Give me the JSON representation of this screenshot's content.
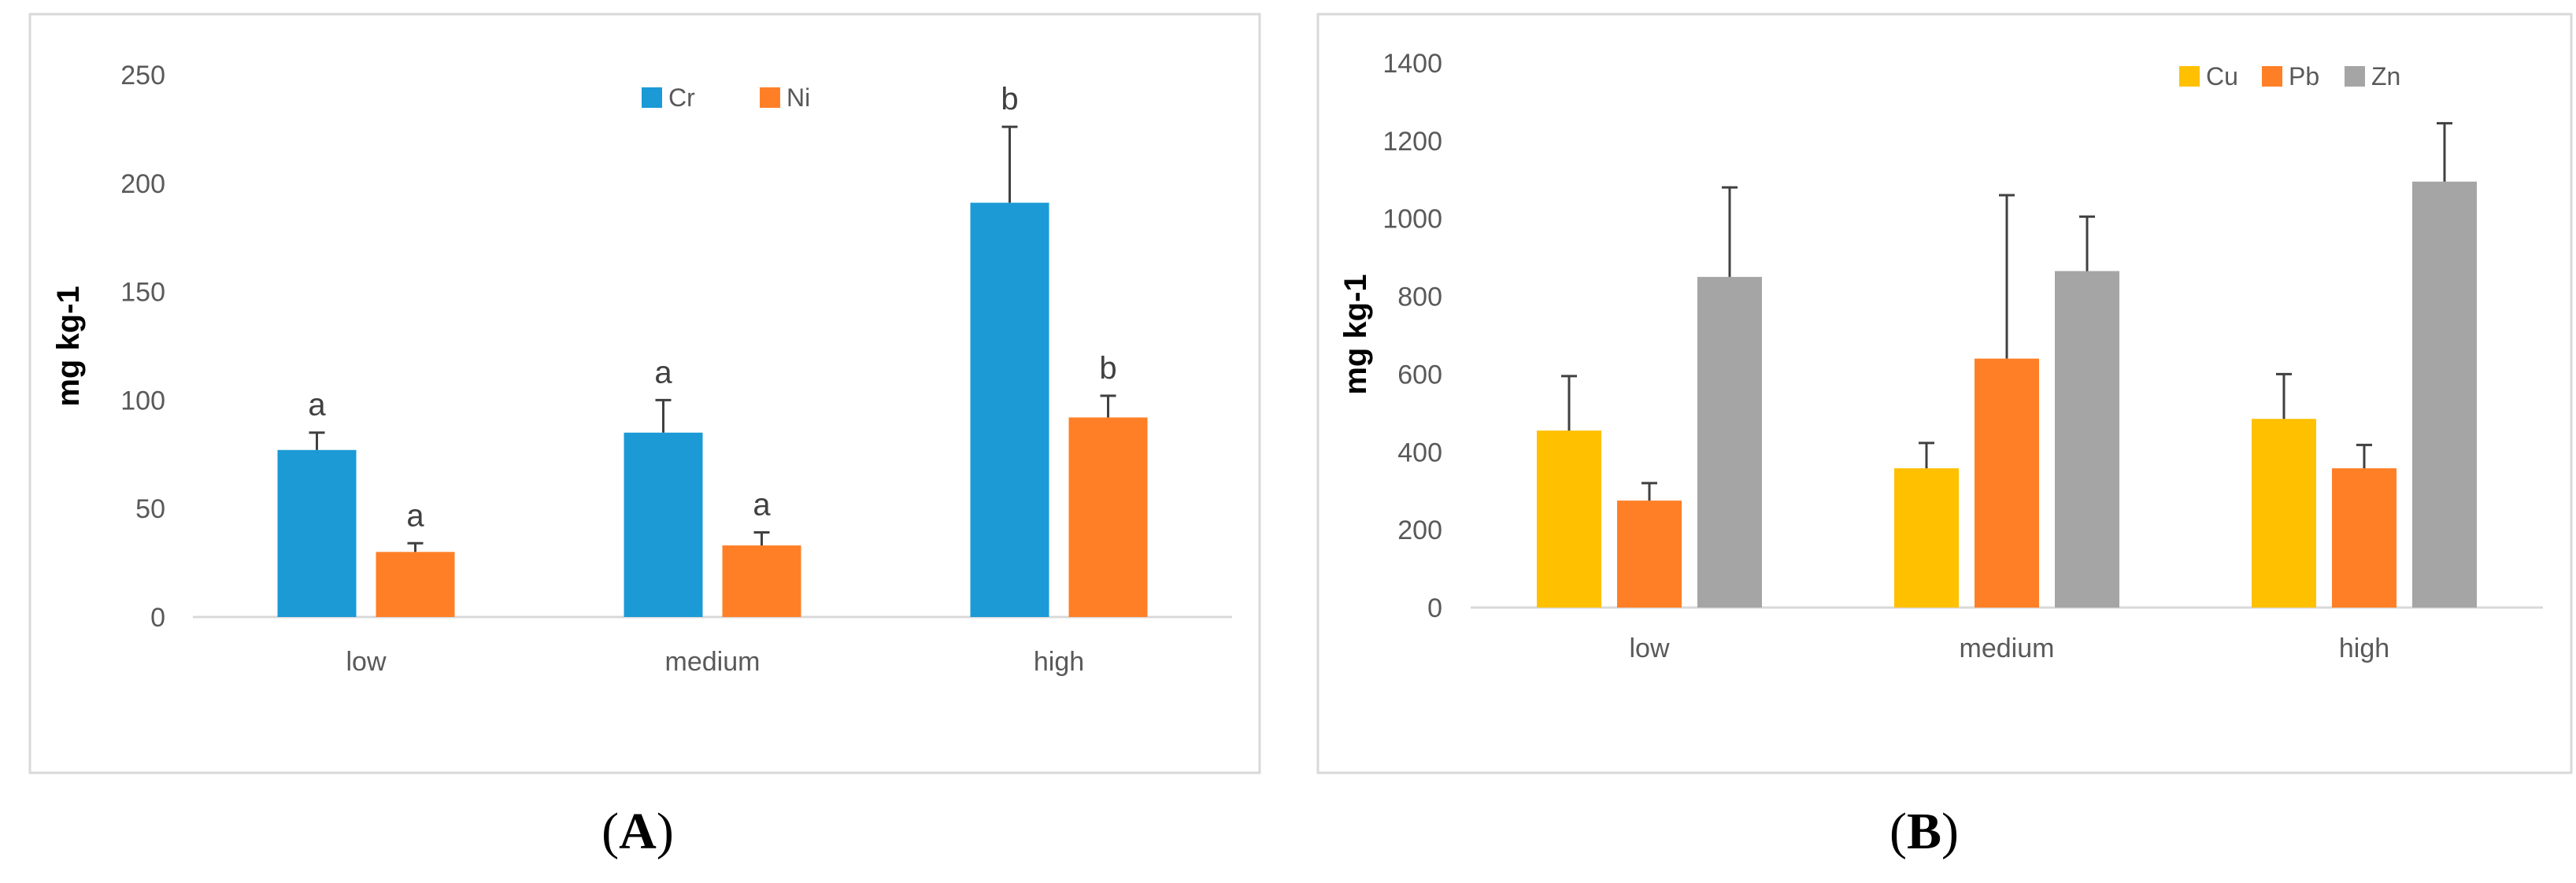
{
  "chart_data": [
    {
      "panel": "A",
      "type": "bar",
      "categories": [
        "low",
        "medium",
        "high"
      ],
      "ylabel": "mg kg-1",
      "xlabel": "",
      "ylim": [
        0,
        250
      ],
      "yticks": [
        "0",
        "50",
        "100",
        "150",
        "200",
        "250"
      ],
      "legend_position": "top-center",
      "series": [
        {
          "name": "Cr",
          "color": "#1B9AD6",
          "values": [
            77,
            85,
            191
          ],
          "errors": [
            8,
            15,
            35
          ],
          "letters": [
            "a",
            "a",
            "b"
          ]
        },
        {
          "name": "Ni",
          "color": "#FF7F27",
          "values": [
            30,
            33,
            92
          ],
          "errors": [
            4,
            6,
            10
          ],
          "letters": [
            "a",
            "a",
            "b"
          ]
        }
      ]
    },
    {
      "panel": "B",
      "type": "bar",
      "categories": [
        "low",
        "medium",
        "high"
      ],
      "ylabel": "mg kg-1",
      "xlabel": "",
      "ylim": [
        0,
        1400
      ],
      "yticks": [
        "0",
        "200",
        "400",
        "600",
        "800",
        "1000",
        "1200",
        "1400"
      ],
      "legend_position": "top-right",
      "series": [
        {
          "name": "Cu",
          "color": "#FFC000",
          "values": [
            455,
            358,
            485
          ],
          "errors": [
            140,
            65,
            115
          ]
        },
        {
          "name": "Pb",
          "color": "#FF7F27",
          "values": [
            275,
            640,
            358
          ],
          "errors": [
            45,
            420,
            60
          ]
        },
        {
          "name": "Zn",
          "color": "#A5A5A5",
          "values": [
            850,
            865,
            1095
          ],
          "errors": [
            230,
            140,
            150
          ]
        }
      ]
    }
  ],
  "panel_labels": {
    "a": "A",
    "b": "B"
  }
}
